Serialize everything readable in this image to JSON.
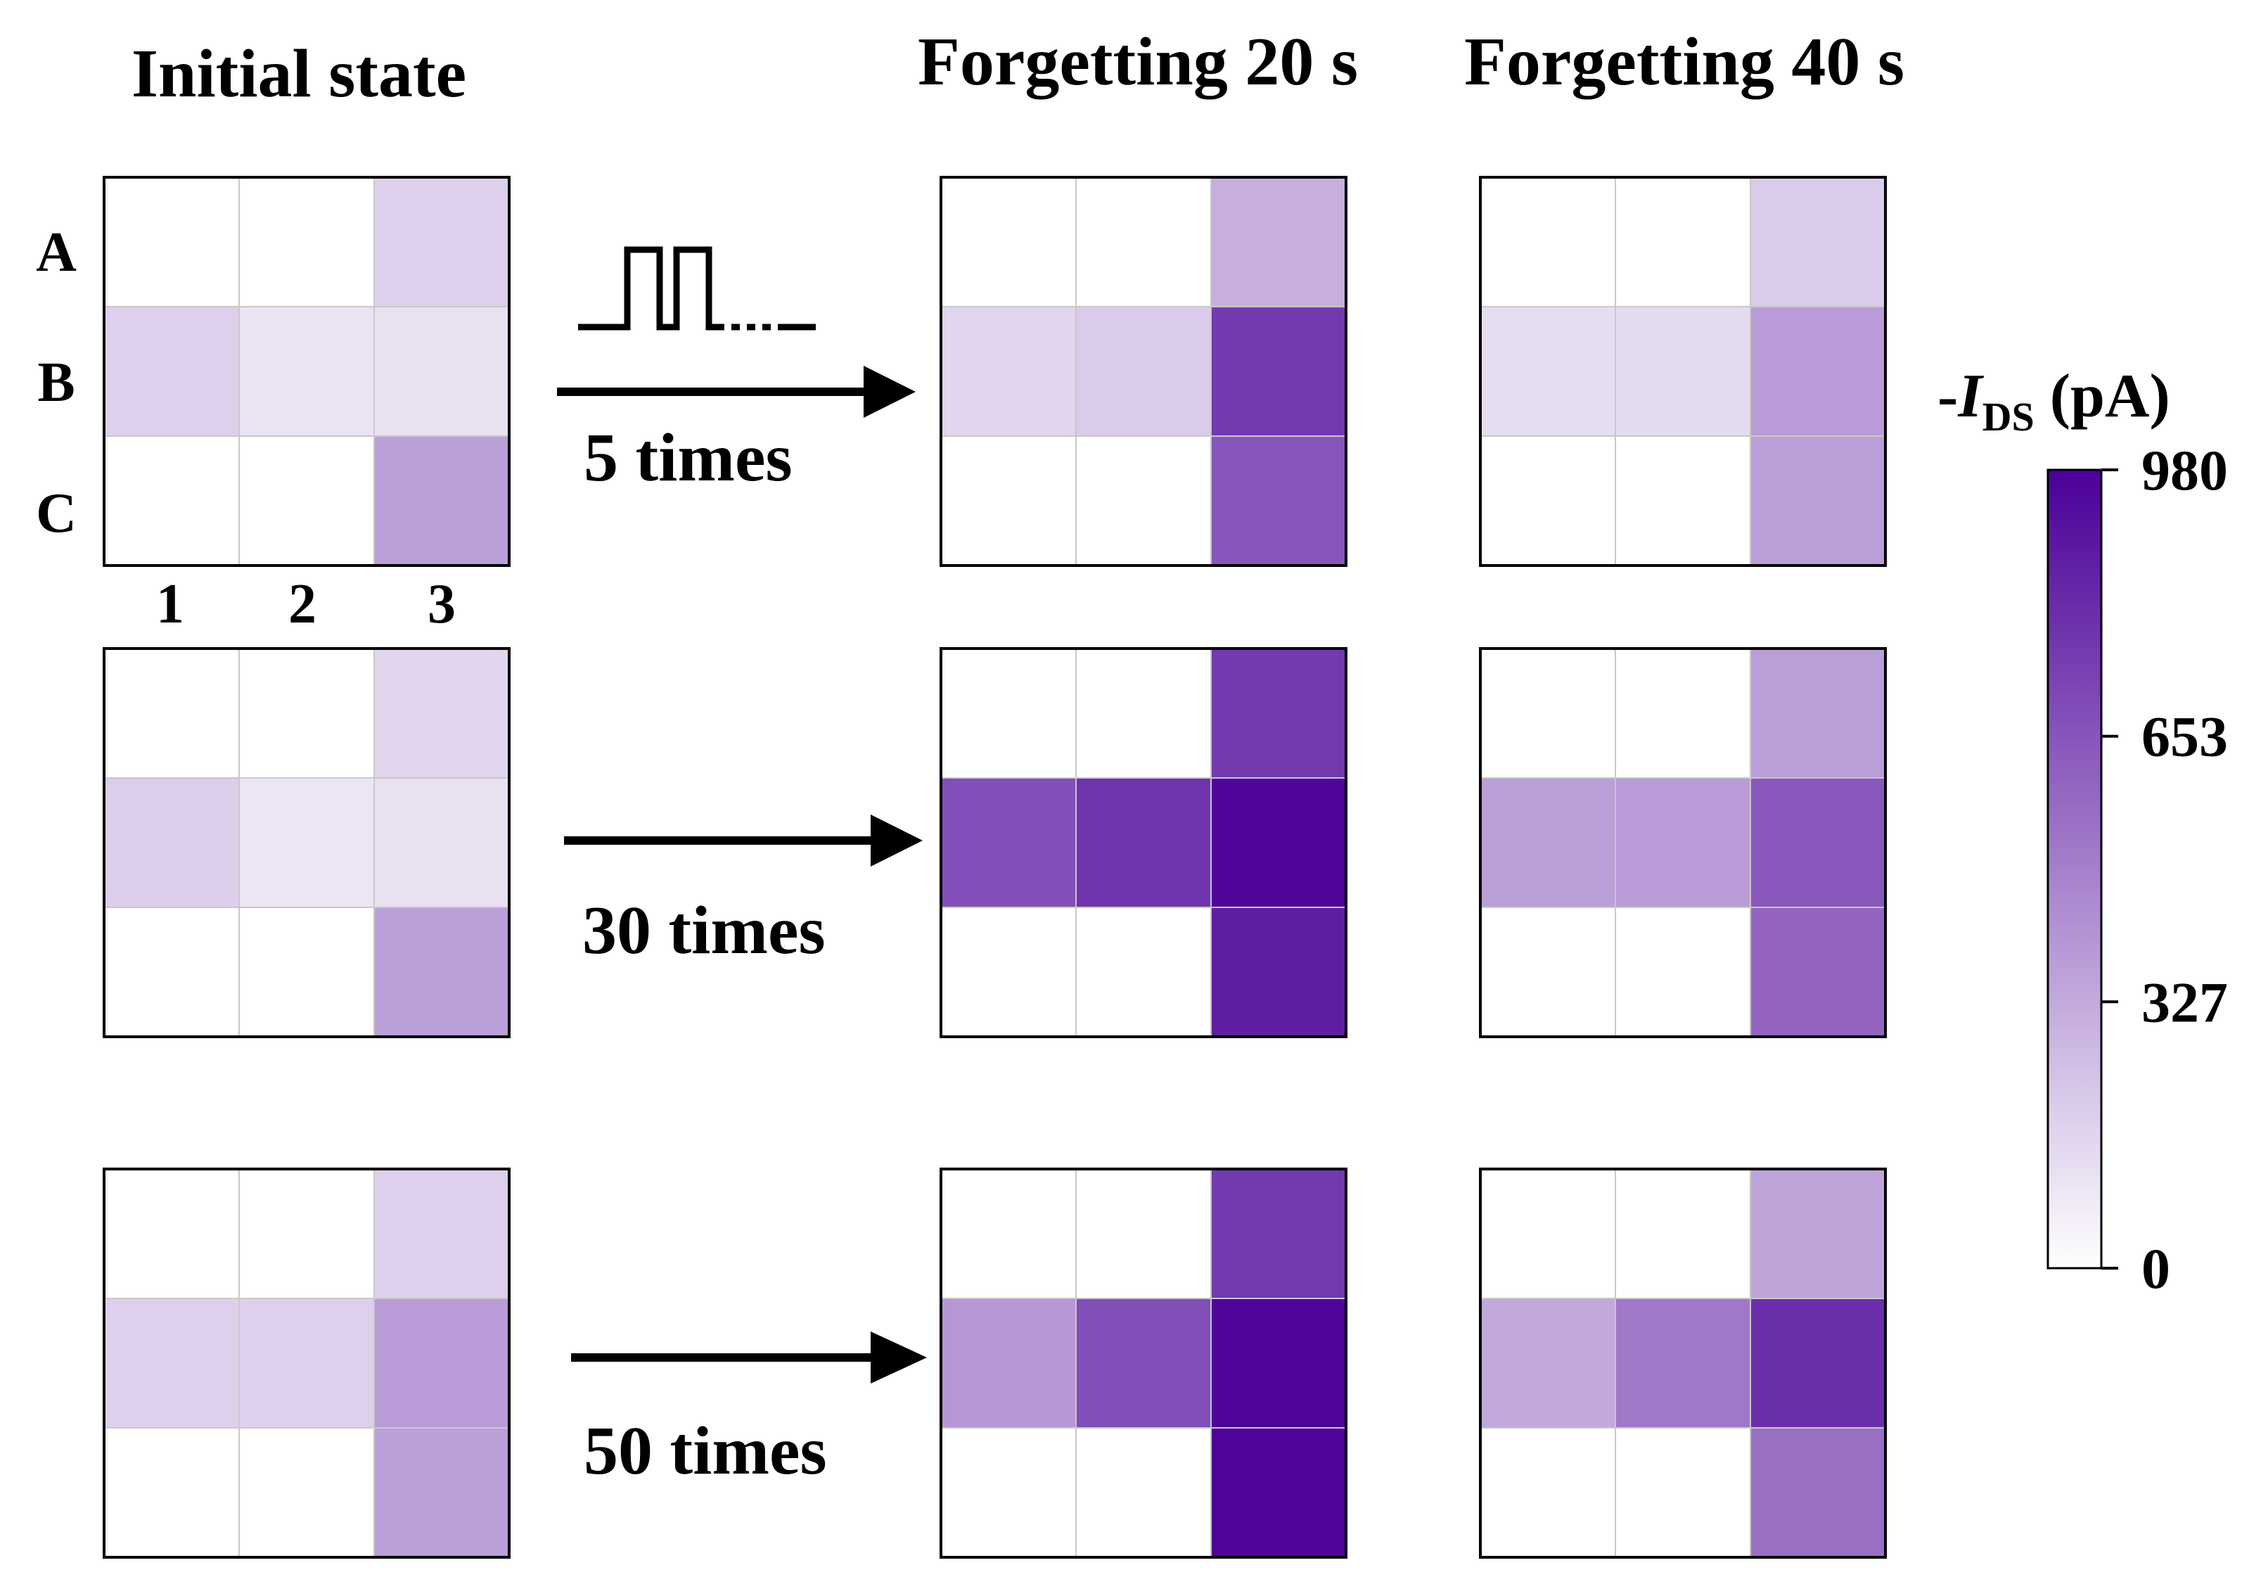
{
  "headers": {
    "initial": "Initial state",
    "forget20": "Forgetting 20 s",
    "forget40": "Forgetting 40 s"
  },
  "row_labels": [
    "A",
    "B",
    "C"
  ],
  "col_labels": [
    "1",
    "2",
    "3"
  ],
  "stim_labels": [
    "5 times",
    "30 times",
    "50 times"
  ],
  "colorbar": {
    "title_prefix": "-",
    "title_italic": "I",
    "title_sub": "DS",
    "title_suffix": " (pA)",
    "ticks": [
      "0",
      "327",
      "653",
      "980"
    ]
  },
  "colors": {
    "low": "#ffffff",
    "high": "#4b0098",
    "grid_line": "#c8c8c8"
  },
  "chart_data": {
    "type": "heatmap",
    "unit": "pA",
    "zlim": [
      0,
      980
    ],
    "row_labels": [
      "A",
      "B",
      "C"
    ],
    "col_labels": [
      "1",
      "2",
      "3"
    ],
    "panels": [
      {
        "stage": "Initial state",
        "stimulus": "5 times",
        "values": [
          [
            0,
            0,
            180
          ],
          [
            180,
            110,
            120
          ],
          [
            0,
            0,
            370
          ]
        ]
      },
      {
        "stage": "Forgetting 20 s",
        "stimulus": "5 times",
        "values": [
          [
            0,
            0,
            310
          ],
          [
            160,
            200,
            760
          ],
          [
            0,
            0,
            650
          ]
        ]
      },
      {
        "stage": "Forgetting 40 s",
        "stimulus": "5 times",
        "values": [
          [
            0,
            0,
            200
          ],
          [
            130,
            140,
            380
          ],
          [
            0,
            0,
            370
          ]
        ]
      },
      {
        "stage": "Initial state",
        "stimulus": "30 times",
        "values": [
          [
            0,
            0,
            160
          ],
          [
            190,
            100,
            120
          ],
          [
            0,
            0,
            370
          ]
        ]
      },
      {
        "stage": "Forgetting 20 s",
        "stimulus": "30 times",
        "values": [
          [
            0,
            0,
            760
          ],
          [
            680,
            780,
            960
          ],
          [
            0,
            0,
            870
          ]
        ]
      },
      {
        "stage": "Forgetting 40 s",
        "stimulus": "30 times",
        "values": [
          [
            0,
            0,
            370
          ],
          [
            370,
            380,
            640
          ],
          [
            0,
            0,
            590
          ]
        ]
      },
      {
        "stage": "Initial state",
        "stimulus": "50 times",
        "values": [
          [
            0,
            0,
            180
          ],
          [
            180,
            180,
            380
          ],
          [
            0,
            0,
            370
          ]
        ]
      },
      {
        "stage": "Forgetting 20 s",
        "stimulus": "50 times",
        "values": [
          [
            0,
            0,
            760
          ],
          [
            400,
            680,
            960
          ],
          [
            0,
            0,
            960
          ]
        ]
      },
      {
        "stage": "Forgetting 40 s",
        "stimulus": "50 times",
        "values": [
          [
            0,
            0,
            350
          ],
          [
            330,
            520,
            800
          ],
          [
            0,
            0,
            550
          ]
        ]
      }
    ]
  }
}
